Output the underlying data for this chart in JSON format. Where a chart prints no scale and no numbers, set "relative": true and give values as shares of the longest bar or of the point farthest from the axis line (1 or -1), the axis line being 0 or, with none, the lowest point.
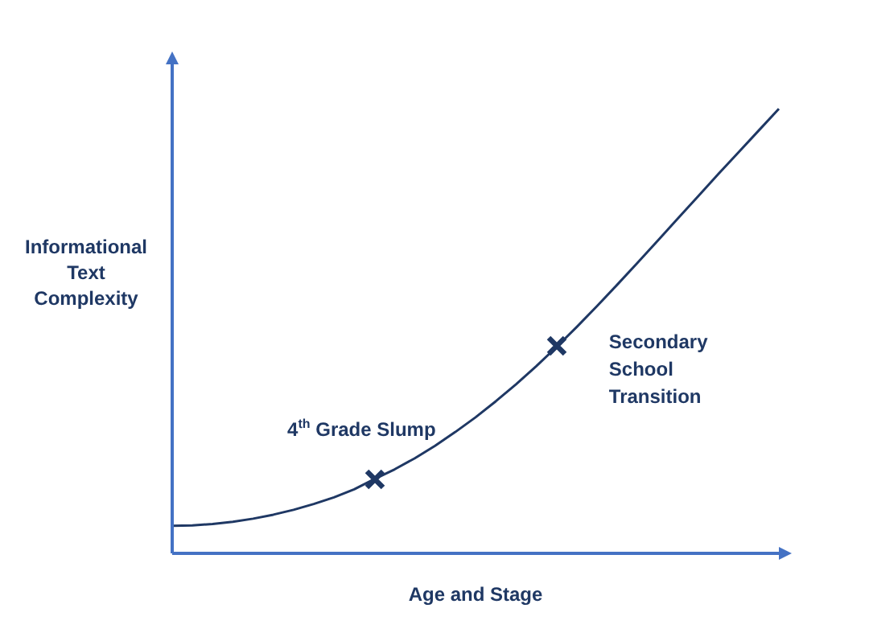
{
  "chart_data": {
    "type": "line",
    "relative": true,
    "xlabel": "Age and Stage",
    "ylabel": "Informational Text Complexity",
    "categories": [
      null,
      null,
      null,
      null,
      null,
      null,
      null,
      null,
      null,
      null,
      null,
      null,
      null,
      null,
      null,
      null,
      null,
      null,
      null,
      null,
      null,
      null,
      null,
      null,
      null,
      null,
      null,
      null,
      null,
      null,
      null
    ],
    "series": [
      {
        "color": "#1f3864",
        "values": [
          0.062,
          0.063,
          0.066,
          0.071,
          0.078,
          0.087,
          0.098,
          0.111,
          0.126,
          0.144,
          0.167,
          0.189,
          0.214,
          0.242,
          0.273,
          0.306,
          0.342,
          0.38,
          0.421,
          0.464,
          0.509,
          0.556,
          0.604,
          0.653,
          0.703,
          0.753,
          0.803,
          0.853,
          0.902,
          0.951,
          1.0
        ]
      }
    ],
    "annotations": [
      {
        "text": "4$^{th}$ Grade Slump",
        "y": 0.167
      },
      "Secondary School Transition"
    ],
    "legend": false
  }
}
